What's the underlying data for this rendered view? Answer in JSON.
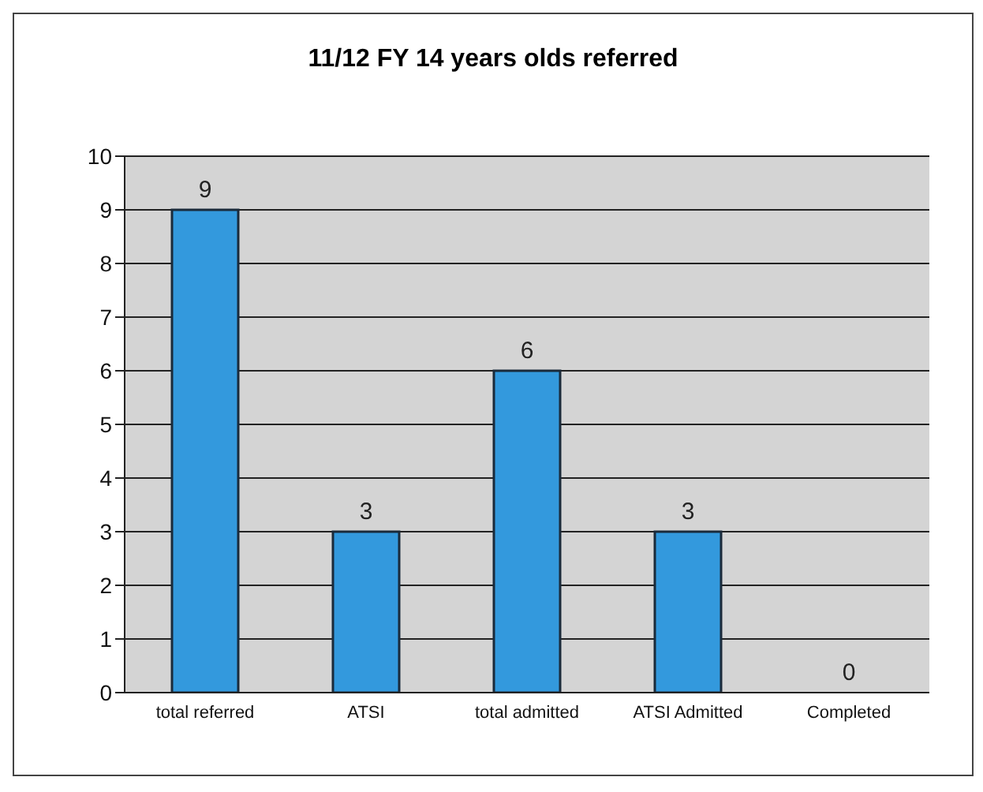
{
  "chart_data": {
    "type": "bar",
    "title": "11/12 FY 14 years olds referred",
    "categories": [
      "total referred",
      "ATSI",
      "total admitted",
      "ATSI Admitted",
      "Completed"
    ],
    "values": [
      9,
      3,
      6,
      3,
      0
    ],
    "color": "#3399dd",
    "ylim": [
      0,
      10
    ],
    "yticks": [
      0,
      1,
      2,
      3,
      4,
      5,
      6,
      7,
      8,
      9,
      10
    ],
    "grid": "y",
    "data_labels": true
  }
}
